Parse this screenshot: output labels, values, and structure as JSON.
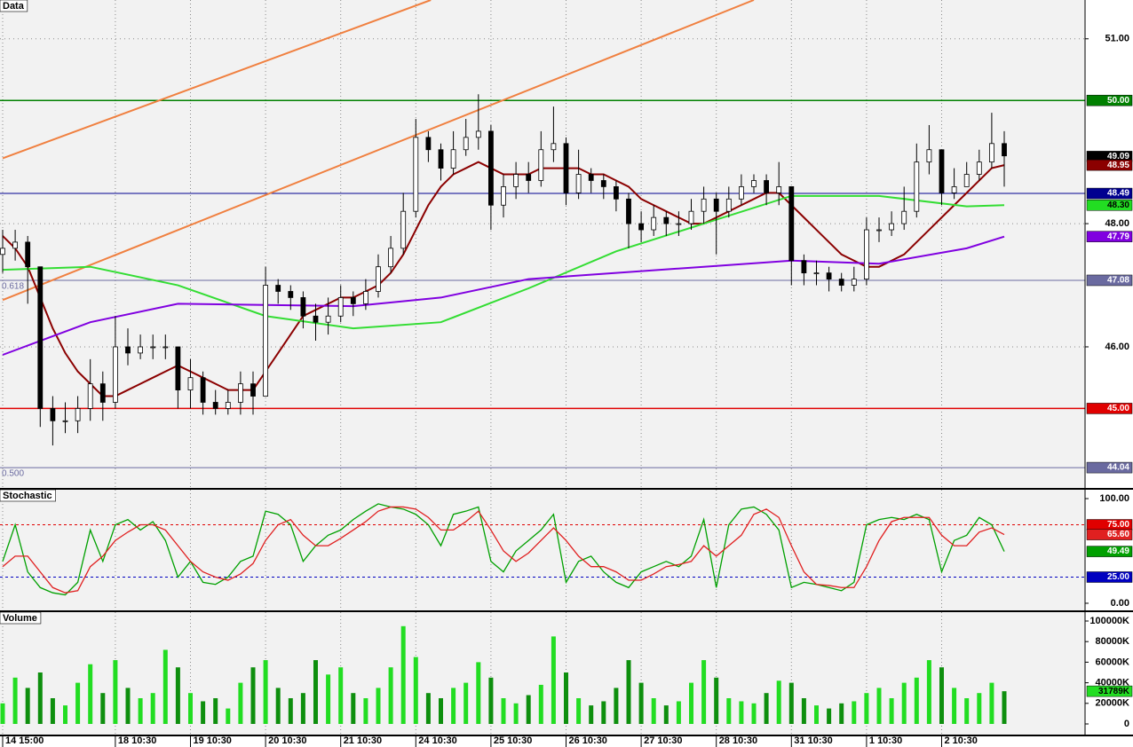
{
  "chart_data": [
    {
      "type": "candlestick",
      "title": "Data",
      "open": [
        47.5,
        47.6,
        47.7,
        47.3,
        45.0,
        44.8,
        44.8,
        45.0,
        45.4,
        45.1,
        46.0,
        45.9,
        46.0,
        46.0,
        46.0,
        45.3,
        45.5,
        45.1,
        45.0,
        45.1,
        45.4,
        45.2,
        47.0,
        46.9,
        46.8,
        46.5,
        46.4,
        46.5,
        46.8,
        46.7,
        46.9,
        47.3,
        47.6,
        48.2,
        49.4,
        49.2,
        48.9,
        49.2,
        49.4,
        49.5,
        48.3,
        48.6,
        48.8,
        48.7,
        49.2,
        49.3,
        48.5,
        48.8,
        48.7,
        48.6,
        48.4,
        48.0,
        47.9,
        48.1,
        48.0,
        48.0,
        48.2,
        48.4,
        48.2,
        48.4,
        48.6,
        48.7,
        48.5,
        48.6,
        47.4,
        47.2,
        47.2,
        47.1,
        47.0,
        47.1,
        47.9,
        47.9,
        48.0,
        48.2,
        49.0,
        49.2,
        48.5,
        48.6,
        48.8,
        49.0,
        49.3
      ],
      "high": [
        47.9,
        47.9,
        47.8,
        47.3,
        45.2,
        45.1,
        45.2,
        45.8,
        45.6,
        46.5,
        46.3,
        46.2,
        46.2,
        46.2,
        46.0,
        45.8,
        45.6,
        45.3,
        45.3,
        45.6,
        45.6,
        47.3,
        47.1,
        47.0,
        46.9,
        46.7,
        46.8,
        47.0,
        46.9,
        47.1,
        47.5,
        47.8,
        48.5,
        49.7,
        49.5,
        49.3,
        49.5,
        49.7,
        50.1,
        49.6,
        48.8,
        49.0,
        49.0,
        49.5,
        49.9,
        49.4,
        49.2,
        48.9,
        48.8,
        48.7,
        48.5,
        48.2,
        48.3,
        48.2,
        48.2,
        48.4,
        48.6,
        48.5,
        48.6,
        48.8,
        48.8,
        48.8,
        49.0,
        48.6,
        47.5,
        47.4,
        47.3,
        47.2,
        47.3,
        48.1,
        48.1,
        48.2,
        48.6,
        49.3,
        49.6,
        49.2,
        48.9,
        49.0,
        49.2,
        49.8,
        49.5
      ],
      "low": [
        47.2,
        47.4,
        46.7,
        44.7,
        44.4,
        44.6,
        44.6,
        44.8,
        44.8,
        45.0,
        45.7,
        45.8,
        45.8,
        45.8,
        45.0,
        45.0,
        44.9,
        44.9,
        44.9,
        44.9,
        44.9,
        45.2,
        46.7,
        46.6,
        46.3,
        46.1,
        46.2,
        46.4,
        46.5,
        46.6,
        46.8,
        47.2,
        47.5,
        48.1,
        49.0,
        48.7,
        48.8,
        49.1,
        49.2,
        47.9,
        48.1,
        48.4,
        48.5,
        48.6,
        49.0,
        48.3,
        48.4,
        48.5,
        48.4,
        48.2,
        47.6,
        47.7,
        47.8,
        47.8,
        47.8,
        47.9,
        48.0,
        47.5,
        48.1,
        48.3,
        48.5,
        48.3,
        48.3,
        47.0,
        47.0,
        47.0,
        46.9,
        46.9,
        46.9,
        47.0,
        47.7,
        47.8,
        47.9,
        48.1,
        48.8,
        48.3,
        48.4,
        48.6,
        48.7,
        48.9,
        48.6
      ],
      "close": [
        47.6,
        47.7,
        47.3,
        45.0,
        44.8,
        44.8,
        45.0,
        45.4,
        45.1,
        46.0,
        45.9,
        46.0,
        46.0,
        46.0,
        45.3,
        45.5,
        45.1,
        45.0,
        45.1,
        45.4,
        45.2,
        47.0,
        46.9,
        46.8,
        46.5,
        46.4,
        46.5,
        46.8,
        46.7,
        46.9,
        47.3,
        47.6,
        48.2,
        49.4,
        49.2,
        48.9,
        49.2,
        49.4,
        49.5,
        48.3,
        48.6,
        48.8,
        48.7,
        49.2,
        49.3,
        48.5,
        48.8,
        48.7,
        48.6,
        48.4,
        48.0,
        47.9,
        48.1,
        48.0,
        48.0,
        48.2,
        48.4,
        48.2,
        48.4,
        48.6,
        48.7,
        48.5,
        48.6,
        47.4,
        47.2,
        47.2,
        47.1,
        47.0,
        47.1,
        47.9,
        47.9,
        48.0,
        48.2,
        49.0,
        49.2,
        48.5,
        48.6,
        48.8,
        49.0,
        49.3,
        49.1
      ],
      "up_color": "#ffffff",
      "down_color": "#000000",
      "ylim": [
        43.71,
        51.63
      ],
      "yticks": [
        {
          "value": 46,
          "label": "46.00"
        },
        {
          "value": 48,
          "label": "48.00"
        },
        {
          "value": 51,
          "label": "51.00"
        }
      ],
      "grid": true,
      "overlays": [
        {
          "color": "#8b0000",
          "values": [
            47.8,
            47.6,
            47.3,
            46.8,
            46.3,
            45.9,
            45.6,
            45.4,
            45.2,
            45.2,
            45.3,
            45.4,
            45.5,
            45.6,
            45.7,
            45.6,
            45.5,
            45.4,
            45.3,
            45.3,
            45.3,
            45.6,
            45.9,
            46.2,
            46.5,
            46.6,
            46.7,
            46.8,
            46.8,
            46.9,
            47.0,
            47.2,
            47.5,
            47.9,
            48.3,
            48.6,
            48.8,
            48.9,
            49.0,
            48.9,
            48.8,
            48.8,
            48.8,
            48.9,
            48.9,
            48.9,
            48.9,
            48.8,
            48.8,
            48.7,
            48.6,
            48.4,
            48.3,
            48.2,
            48.1,
            48.0,
            48.0,
            48.1,
            48.2,
            48.3,
            48.4,
            48.5,
            48.5,
            48.3,
            48.1,
            47.9,
            47.7,
            47.5,
            47.4,
            47.3,
            47.3,
            47.4,
            47.5,
            47.7,
            47.9,
            48.1,
            48.3,
            48.5,
            48.7,
            48.9,
            48.95
          ]
        },
        {
          "color": "#33dd33",
          "x": [
            0,
            7,
            14,
            21,
            28,
            35,
            42,
            49,
            56,
            63,
            70,
            77,
            80
          ],
          "values": [
            47.25,
            47.3,
            47.0,
            46.5,
            46.3,
            46.4,
            46.95,
            47.55,
            48.0,
            48.45,
            48.45,
            48.28,
            48.3
          ]
        },
        {
          "color": "#8000e0",
          "x": [
            0,
            7,
            14,
            21,
            28,
            35,
            42,
            49,
            56,
            63,
            70,
            77,
            80
          ],
          "values": [
            45.87,
            46.4,
            46.7,
            46.68,
            46.66,
            46.8,
            47.1,
            47.2,
            47.3,
            47.4,
            47.35,
            47.6,
            47.79
          ]
        }
      ],
      "trendlines": [
        {
          "color": "#f08040",
          "x": [
            0,
            34.2
          ],
          "values": [
            49.06,
            51.63
          ]
        },
        {
          "color": "#f08040",
          "x": [
            0,
            60
          ],
          "values": [
            46.76,
            51.63
          ]
        }
      ],
      "levels": [
        {
          "value": 50,
          "label": "50.00",
          "color": "#008000"
        },
        {
          "value": 45,
          "label": "45.00",
          "color": "#e00000"
        },
        {
          "value": 48.49,
          "label": "48.49",
          "color": "#000090"
        },
        {
          "value": 47.08,
          "label": "47.08",
          "color": "#6a6aa0",
          "note": "0.618"
        },
        {
          "value": 44.04,
          "label": "44.04",
          "color": "#6a6aa0",
          "note": "0.500"
        }
      ],
      "markers": [
        {
          "value": 49.09,
          "label": "49.09",
          "color": "#000000"
        },
        {
          "value": 48.95,
          "label": "48.95",
          "color": "#8b0000"
        },
        {
          "value": 48.3,
          "label": "48.30",
          "color": "#22dd22"
        },
        {
          "value": 47.79,
          "label": "47.79",
          "color": "#8000e0"
        }
      ]
    },
    {
      "type": "line",
      "title": "Stochastic",
      "series": [
        {
          "color": "#00a000",
          "values": [
            40,
            75,
            30,
            15,
            10,
            8,
            20,
            70,
            40,
            75,
            80,
            70,
            78,
            60,
            25,
            40,
            20,
            18,
            25,
            40,
            45,
            88,
            85,
            75,
            40,
            55,
            65,
            70,
            80,
            88,
            95,
            92,
            90,
            85,
            75,
            55,
            85,
            88,
            92,
            40,
            30,
            50,
            60,
            70,
            85,
            20,
            40,
            45,
            30,
            20,
            15,
            30,
            35,
            40,
            35,
            45,
            80,
            15,
            75,
            90,
            92,
            85,
            70,
            15,
            20,
            18,
            15,
            12,
            20,
            75,
            80,
            82,
            80,
            85,
            80,
            30,
            60,
            65,
            82,
            75,
            49.49
          ]
        },
        {
          "color": "#e02020",
          "values": [
            35,
            45,
            45,
            30,
            15,
            10,
            12,
            35,
            45,
            60,
            68,
            75,
            75,
            70,
            55,
            40,
            30,
            25,
            22,
            28,
            38,
            60,
            75,
            80,
            65,
            55,
            55,
            62,
            70,
            78,
            88,
            92,
            92,
            90,
            82,
            70,
            70,
            78,
            88,
            70,
            50,
            40,
            48,
            60,
            72,
            60,
            45,
            35,
            35,
            30,
            22,
            22,
            28,
            35,
            37,
            40,
            55,
            45,
            55,
            65,
            85,
            90,
            82,
            55,
            30,
            18,
            17,
            15,
            15,
            35,
            60,
            78,
            82,
            82,
            82,
            65,
            55,
            55,
            68,
            72,
            65.6
          ]
        }
      ],
      "ylim": [
        -6.8,
        108.5
      ],
      "yticks": [
        {
          "value": 0,
          "label": "0.00"
        },
        {
          "value": 100,
          "label": "100.00"
        }
      ],
      "levels": [
        {
          "value": 75,
          "label": "75.00",
          "color": "#e00000"
        },
        {
          "value": 25,
          "label": "25.00",
          "color": "#0000c0"
        }
      ],
      "markers": [
        {
          "value": 65.6,
          "label": "65.60",
          "color": "#e02020"
        },
        {
          "value": 49.49,
          "label": "49.49",
          "color": "#00a000"
        }
      ]
    },
    {
      "type": "bar",
      "title": "Volume",
      "categories": [
        "14 15:00",
        null,
        null,
        null,
        null,
        null,
        null,
        null,
        null,
        "18 10:30",
        null,
        null,
        null,
        null,
        null,
        "19 10:30",
        null,
        null,
        null,
        null,
        null,
        "20 10:30",
        null,
        null,
        null,
        null,
        null,
        "21 10:30",
        null,
        null,
        null,
        null,
        null,
        "24 10:30",
        null,
        null,
        null,
        null,
        null,
        "25 10:30",
        null,
        null,
        null,
        null,
        null,
        "26 10:30",
        null,
        null,
        null,
        null,
        null,
        "27 10:30",
        null,
        null,
        null,
        null,
        null,
        "28 10:30",
        null,
        null,
        null,
        null,
        null,
        "31 10:30",
        null,
        null,
        null,
        null,
        null,
        "1 10:30",
        null,
        null,
        null,
        null,
        null,
        "2 10:30",
        null,
        null,
        null,
        null,
        null
      ],
      "values": [
        20000,
        45000,
        35000,
        50000,
        25000,
        18000,
        40000,
        58000,
        30000,
        62000,
        35000,
        25000,
        30000,
        72000,
        55000,
        30000,
        22000,
        25000,
        15000,
        40000,
        55000,
        62000,
        35000,
        25000,
        30000,
        62000,
        48000,
        55000,
        30000,
        25000,
        35000,
        55000,
        95000,
        65000,
        30000,
        25000,
        35000,
        40000,
        60000,
        45000,
        25000,
        20000,
        28000,
        38000,
        85000,
        50000,
        25000,
        18000,
        22000,
        35000,
        62000,
        40000,
        25000,
        18000,
        22000,
        40000,
        62000,
        45000,
        25000,
        22000,
        20000,
        30000,
        42000,
        40000,
        25000,
        18000,
        15000,
        20000,
        22000,
        30000,
        35000,
        25000,
        40000,
        45000,
        62000,
        55000,
        35000,
        25000,
        30000,
        40000,
        31789
      ],
      "color": "#22dd22",
      "down_color": "#0e8f0e",
      "ylim": [
        -10345,
        108620
      ],
      "yticks": [
        0,
        {
          "value": 20000,
          "label": "20000K"
        },
        {
          "value": 40000,
          "label": "40000K"
        },
        {
          "value": 60000,
          "label": "60000K"
        },
        {
          "value": 80000,
          "label": "80000K"
        },
        {
          "value": 100000,
          "label": "100000K"
        }
      ],
      "markers": [
        {
          "value": 31789,
          "label": "31789K",
          "color": "#22dd22"
        }
      ]
    }
  ]
}
